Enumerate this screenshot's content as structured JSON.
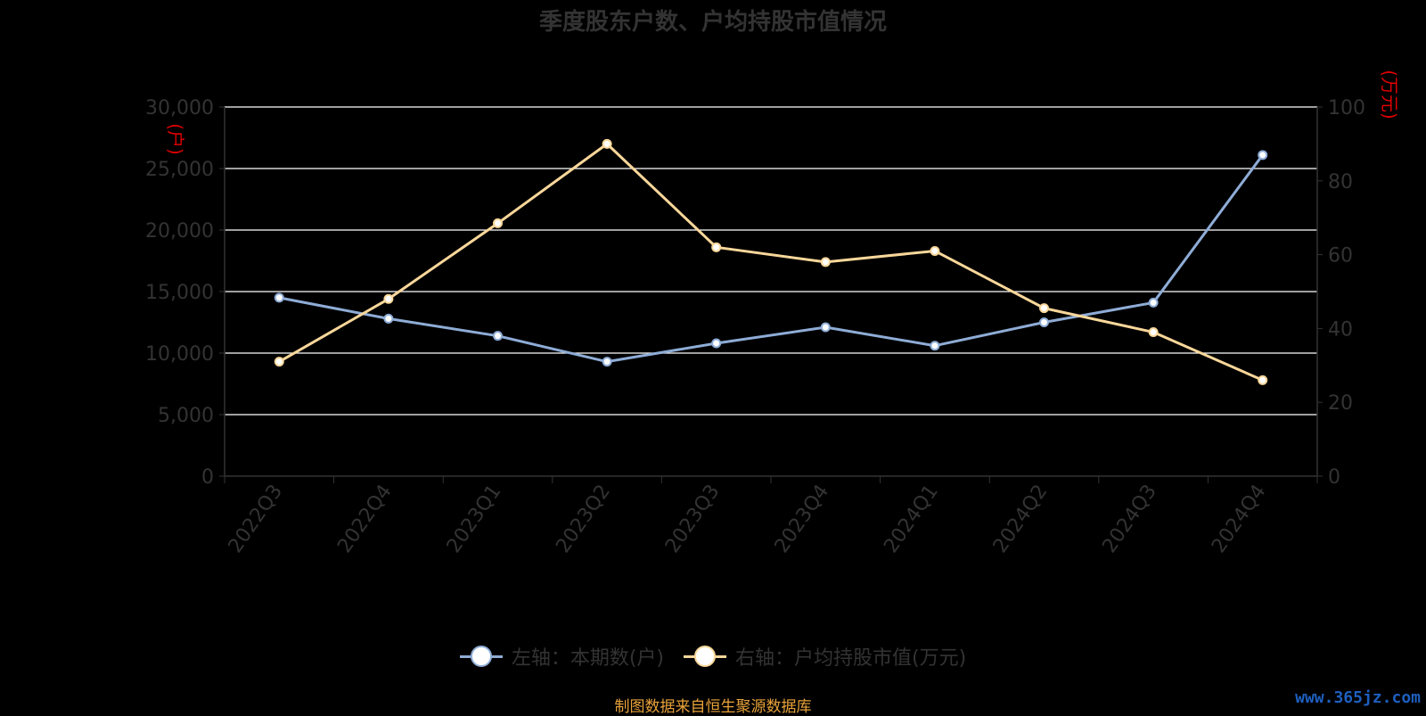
{
  "colors": {
    "left_series": "#8eacd6",
    "right_series": "#f9d79a",
    "axis_unit": "#e00000",
    "grid": "#ffffff"
  },
  "footer": {
    "source": "制图数据来自恒生聚源数据库",
    "watermark": "www.365jz.com"
  },
  "chart_data": {
    "type": "line",
    "title": "季度股东户数、户均持股市值情况",
    "categories": [
      "2022Q3",
      "2022Q4",
      "2023Q1",
      "2023Q2",
      "2023Q3",
      "2023Q4",
      "2024Q1",
      "2024Q2",
      "2024Q3",
      "2024Q4"
    ],
    "y_left": {
      "label": "(户)",
      "ylim": [
        0,
        30000
      ],
      "ticks": [
        "0",
        "5,000",
        "10,000",
        "15,000",
        "20,000",
        "25,000",
        "30,000"
      ]
    },
    "y_right": {
      "label": "(万元)",
      "ylim": [
        0,
        100
      ],
      "ticks": [
        "0",
        "20",
        "40",
        "60",
        "80",
        "100"
      ]
    },
    "grid": true,
    "legend_position": "bottom",
    "series": [
      {
        "name": "左轴：本期数(户)",
        "axis": "left",
        "values": [
          14500,
          12800,
          11400,
          9300,
          10800,
          12100,
          10600,
          12500,
          14100,
          26100
        ]
      },
      {
        "name": "右轴：户均持股市值(万元)",
        "axis": "right",
        "values": [
          31,
          48,
          68.5,
          90,
          62,
          58,
          61,
          45.5,
          39,
          26
        ]
      }
    ]
  }
}
